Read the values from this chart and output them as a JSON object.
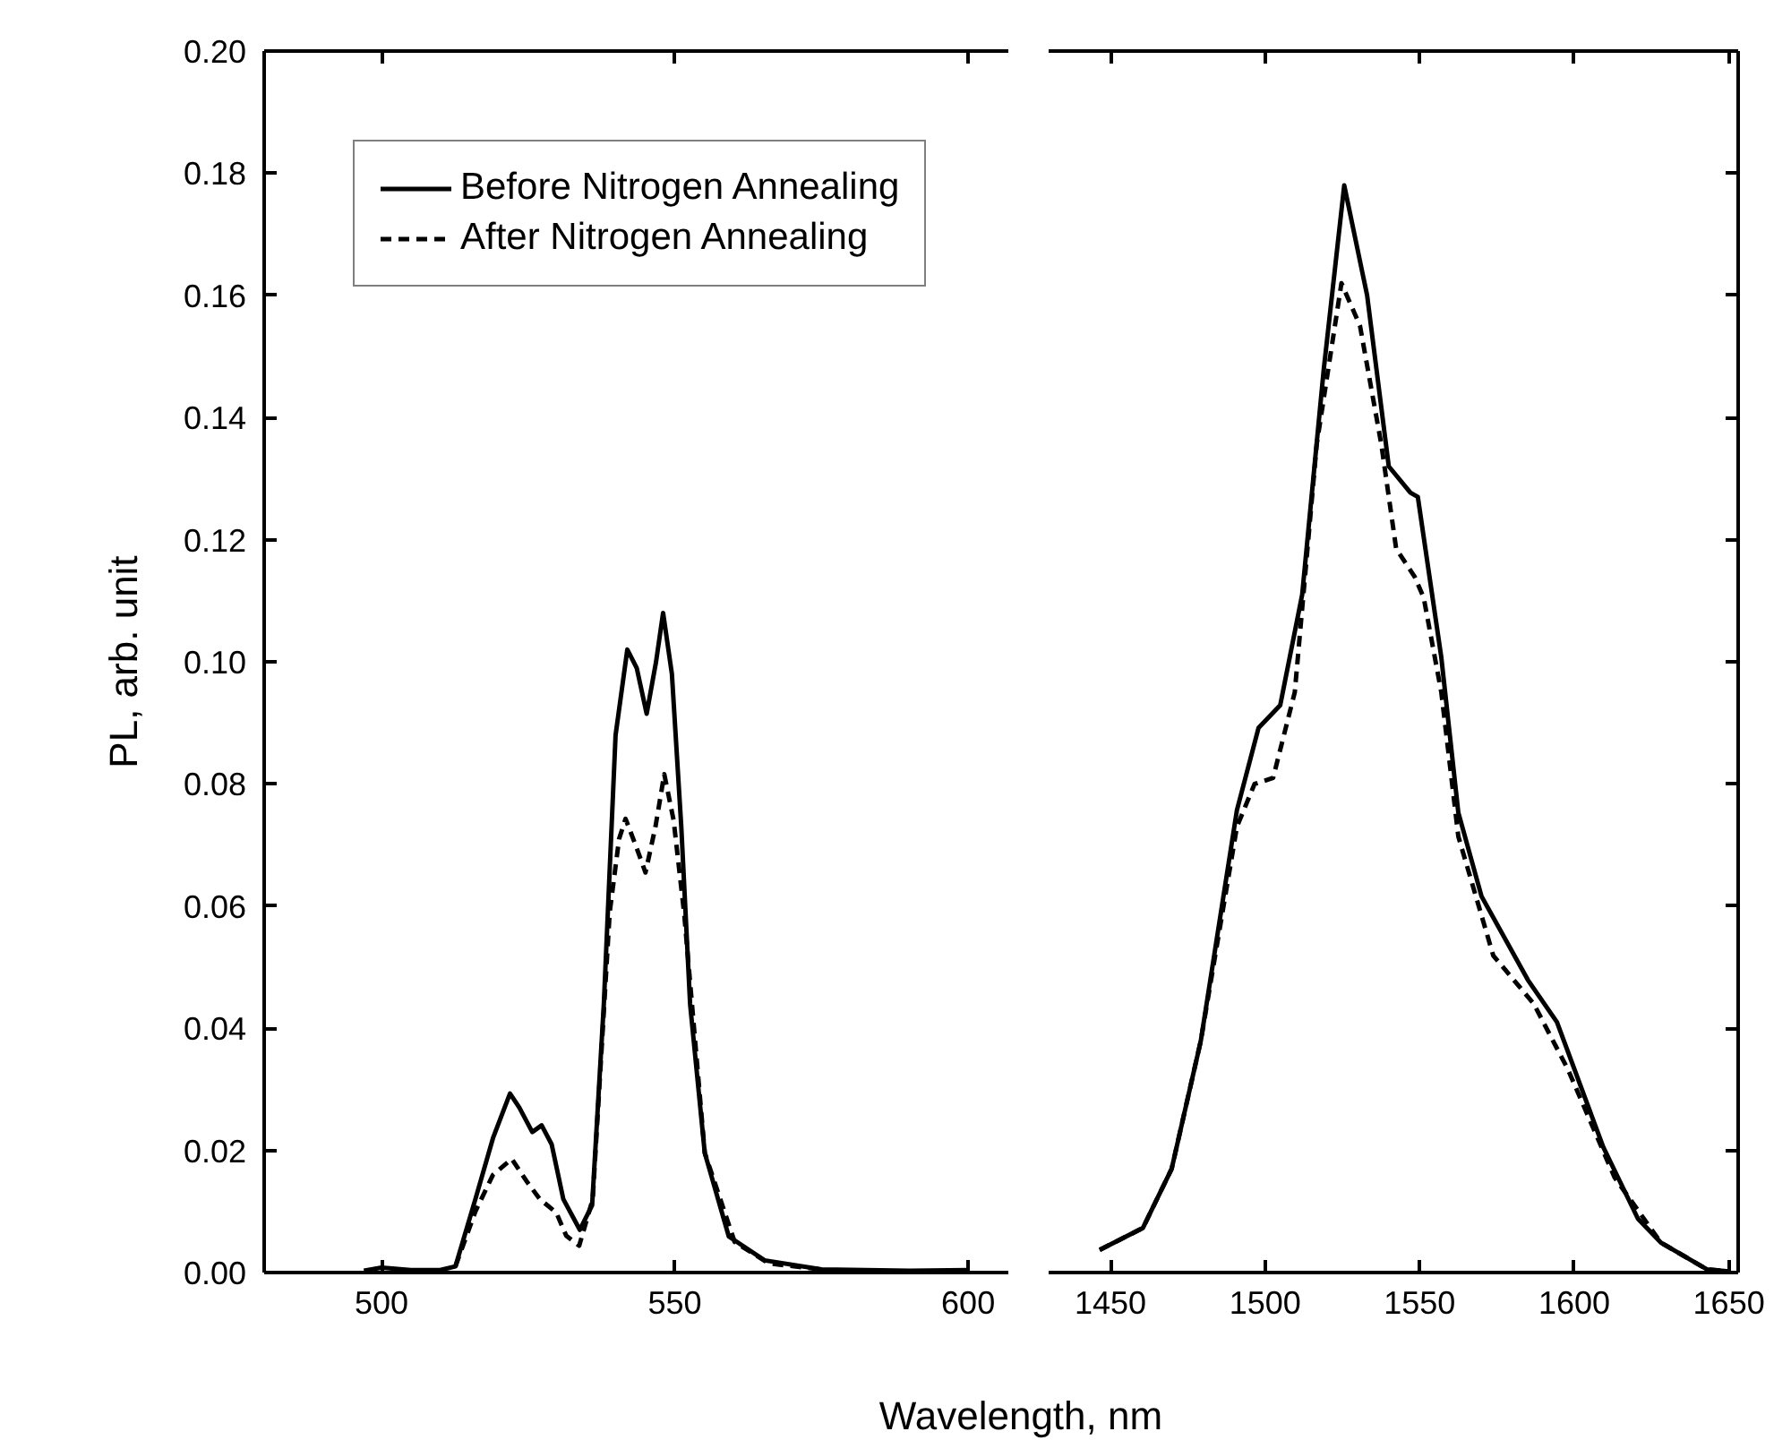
{
  "chart_data": [
    {
      "type": "line",
      "ylabel": "PL, arb. unit",
      "xlabel": "Wavelength, nm",
      "xlim": [
        480,
        607
      ],
      "xticks": [
        500,
        550,
        600
      ],
      "ylim": [
        0,
        0.2
      ],
      "yticks": [
        {
          "value": 0,
          "label": "0.00"
        },
        {
          "value": 0.02,
          "label": "0.02"
        },
        {
          "value": 0.04,
          "label": "0.04"
        },
        {
          "value": 0.06,
          "label": "0.06"
        },
        {
          "value": 0.08,
          "label": "0.08"
        },
        {
          "value": 0.1,
          "label": "0.10"
        },
        {
          "value": 0.12,
          "label": "0.12"
        },
        {
          "value": 0.14,
          "label": "0.14"
        },
        {
          "value": 0.16,
          "label": "0.16"
        },
        {
          "value": 0.18,
          "label": "0.18"
        },
        {
          "value": 0.2,
          "label": "0.20"
        }
      ],
      "legend": "top left",
      "grid": false,
      "series": [
        {
          "name": "Before Nitrogen Annealing",
          "color": "#000000",
          "line_style": "solid",
          "x": [
            497,
            500,
            505,
            510,
            512.6,
            516,
            519,
            521.9,
            523.5,
            525.7,
            527.3,
            529,
            531,
            533.8,
            535.9,
            537.9,
            539.9,
            541.9,
            543.5,
            545.2,
            546.8,
            548,
            549.5,
            551.1,
            552.6,
            555.1,
            559.2,
            565.3,
            575,
            590,
            600
          ],
          "values": [
            0.0003,
            0.0008,
            0.0004,
            0.0004,
            0.001,
            0.012,
            0.022,
            0.0293,
            0.027,
            0.023,
            0.0241,
            0.021,
            0.012,
            0.007,
            0.011,
            0.044,
            0.088,
            0.102,
            0.099,
            0.0915,
            0.1,
            0.108,
            0.098,
            0.073,
            0.044,
            0.0196,
            0.0059,
            0.002,
            0.0005,
            0.0003,
            0.0004
          ]
        },
        {
          "name": "After Nitrogen Annealing",
          "color": "#000000",
          "line_style": "dashed",
          "x": [
            512.6,
            516,
            519,
            522.2,
            524.7,
            527,
            529.8,
            531.5,
            533.7,
            536,
            538.9,
            540.5,
            541.6,
            543.3,
            545,
            546.7,
            548.2,
            549.8,
            551.6,
            555.1,
            560.2,
            566,
            575
          ],
          "values": [
            0.001,
            0.01,
            0.016,
            0.0186,
            0.015,
            0.012,
            0.0098,
            0.006,
            0.0044,
            0.012,
            0.059,
            0.071,
            0.0743,
            0.07,
            0.0655,
            0.073,
            0.0816,
            0.074,
            0.0587,
            0.0196,
            0.005,
            0.0015,
            0.0005
          ]
        }
      ]
    },
    {
      "type": "line",
      "tick_labels": "x",
      "xlim": [
        1430,
        1653
      ],
      "xticks": [
        1450,
        1500,
        1550,
        1600,
        1650
      ],
      "ylim": [
        0,
        0.2
      ],
      "yticks": [
        0,
        0.02,
        0.04,
        0.06,
        0.08,
        0.1,
        0.12,
        0.14,
        0.16,
        0.18,
        0.2
      ],
      "grid": false,
      "series": [
        {
          "color": "#000000",
          "line_style": "solid",
          "x": [
            1446.5,
            1460.5,
            1469.8,
            1479.2,
            1490.9,
            1497.9,
            1504.9,
            1512,
            1519,
            1525.6,
            1533,
            1540,
            1547,
            1549.4,
            1557,
            1562.5,
            1570,
            1585,
            1594.4,
            1609.4,
            1620.6,
            1628,
            1643,
            1650
          ],
          "values": [
            0.0037,
            0.0073,
            0.017,
            0.0379,
            0.0757,
            0.0892,
            0.0929,
            0.111,
            0.148,
            0.178,
            0.16,
            0.132,
            0.1277,
            0.127,
            0.1007,
            0.0753,
            0.0616,
            0.0479,
            0.041,
            0.0205,
            0.0088,
            0.0049,
            0.0005,
            0.0002
          ]
        },
        {
          "color": "#000000",
          "line_style": "dashed",
          "x": [
            1446.5,
            1460.5,
            1469.8,
            1479.2,
            1490.9,
            1496.6,
            1502.6,
            1509.6,
            1516.7,
            1524.7,
            1530.7,
            1537.6,
            1542.4,
            1548.3,
            1551.3,
            1557,
            1562.5,
            1573.8,
            1586.9,
            1598,
            1613,
            1628,
            1643,
            1650
          ],
          "values": [
            0.0037,
            0.0073,
            0.017,
            0.0379,
            0.073,
            0.08,
            0.081,
            0.095,
            0.1356,
            0.162,
            0.155,
            0.1356,
            0.1185,
            0.114,
            0.1105,
            0.095,
            0.0714,
            0.0519,
            0.044,
            0.0332,
            0.0156,
            0.0049,
            0.0005,
            0.0002
          ]
        }
      ]
    }
  ]
}
